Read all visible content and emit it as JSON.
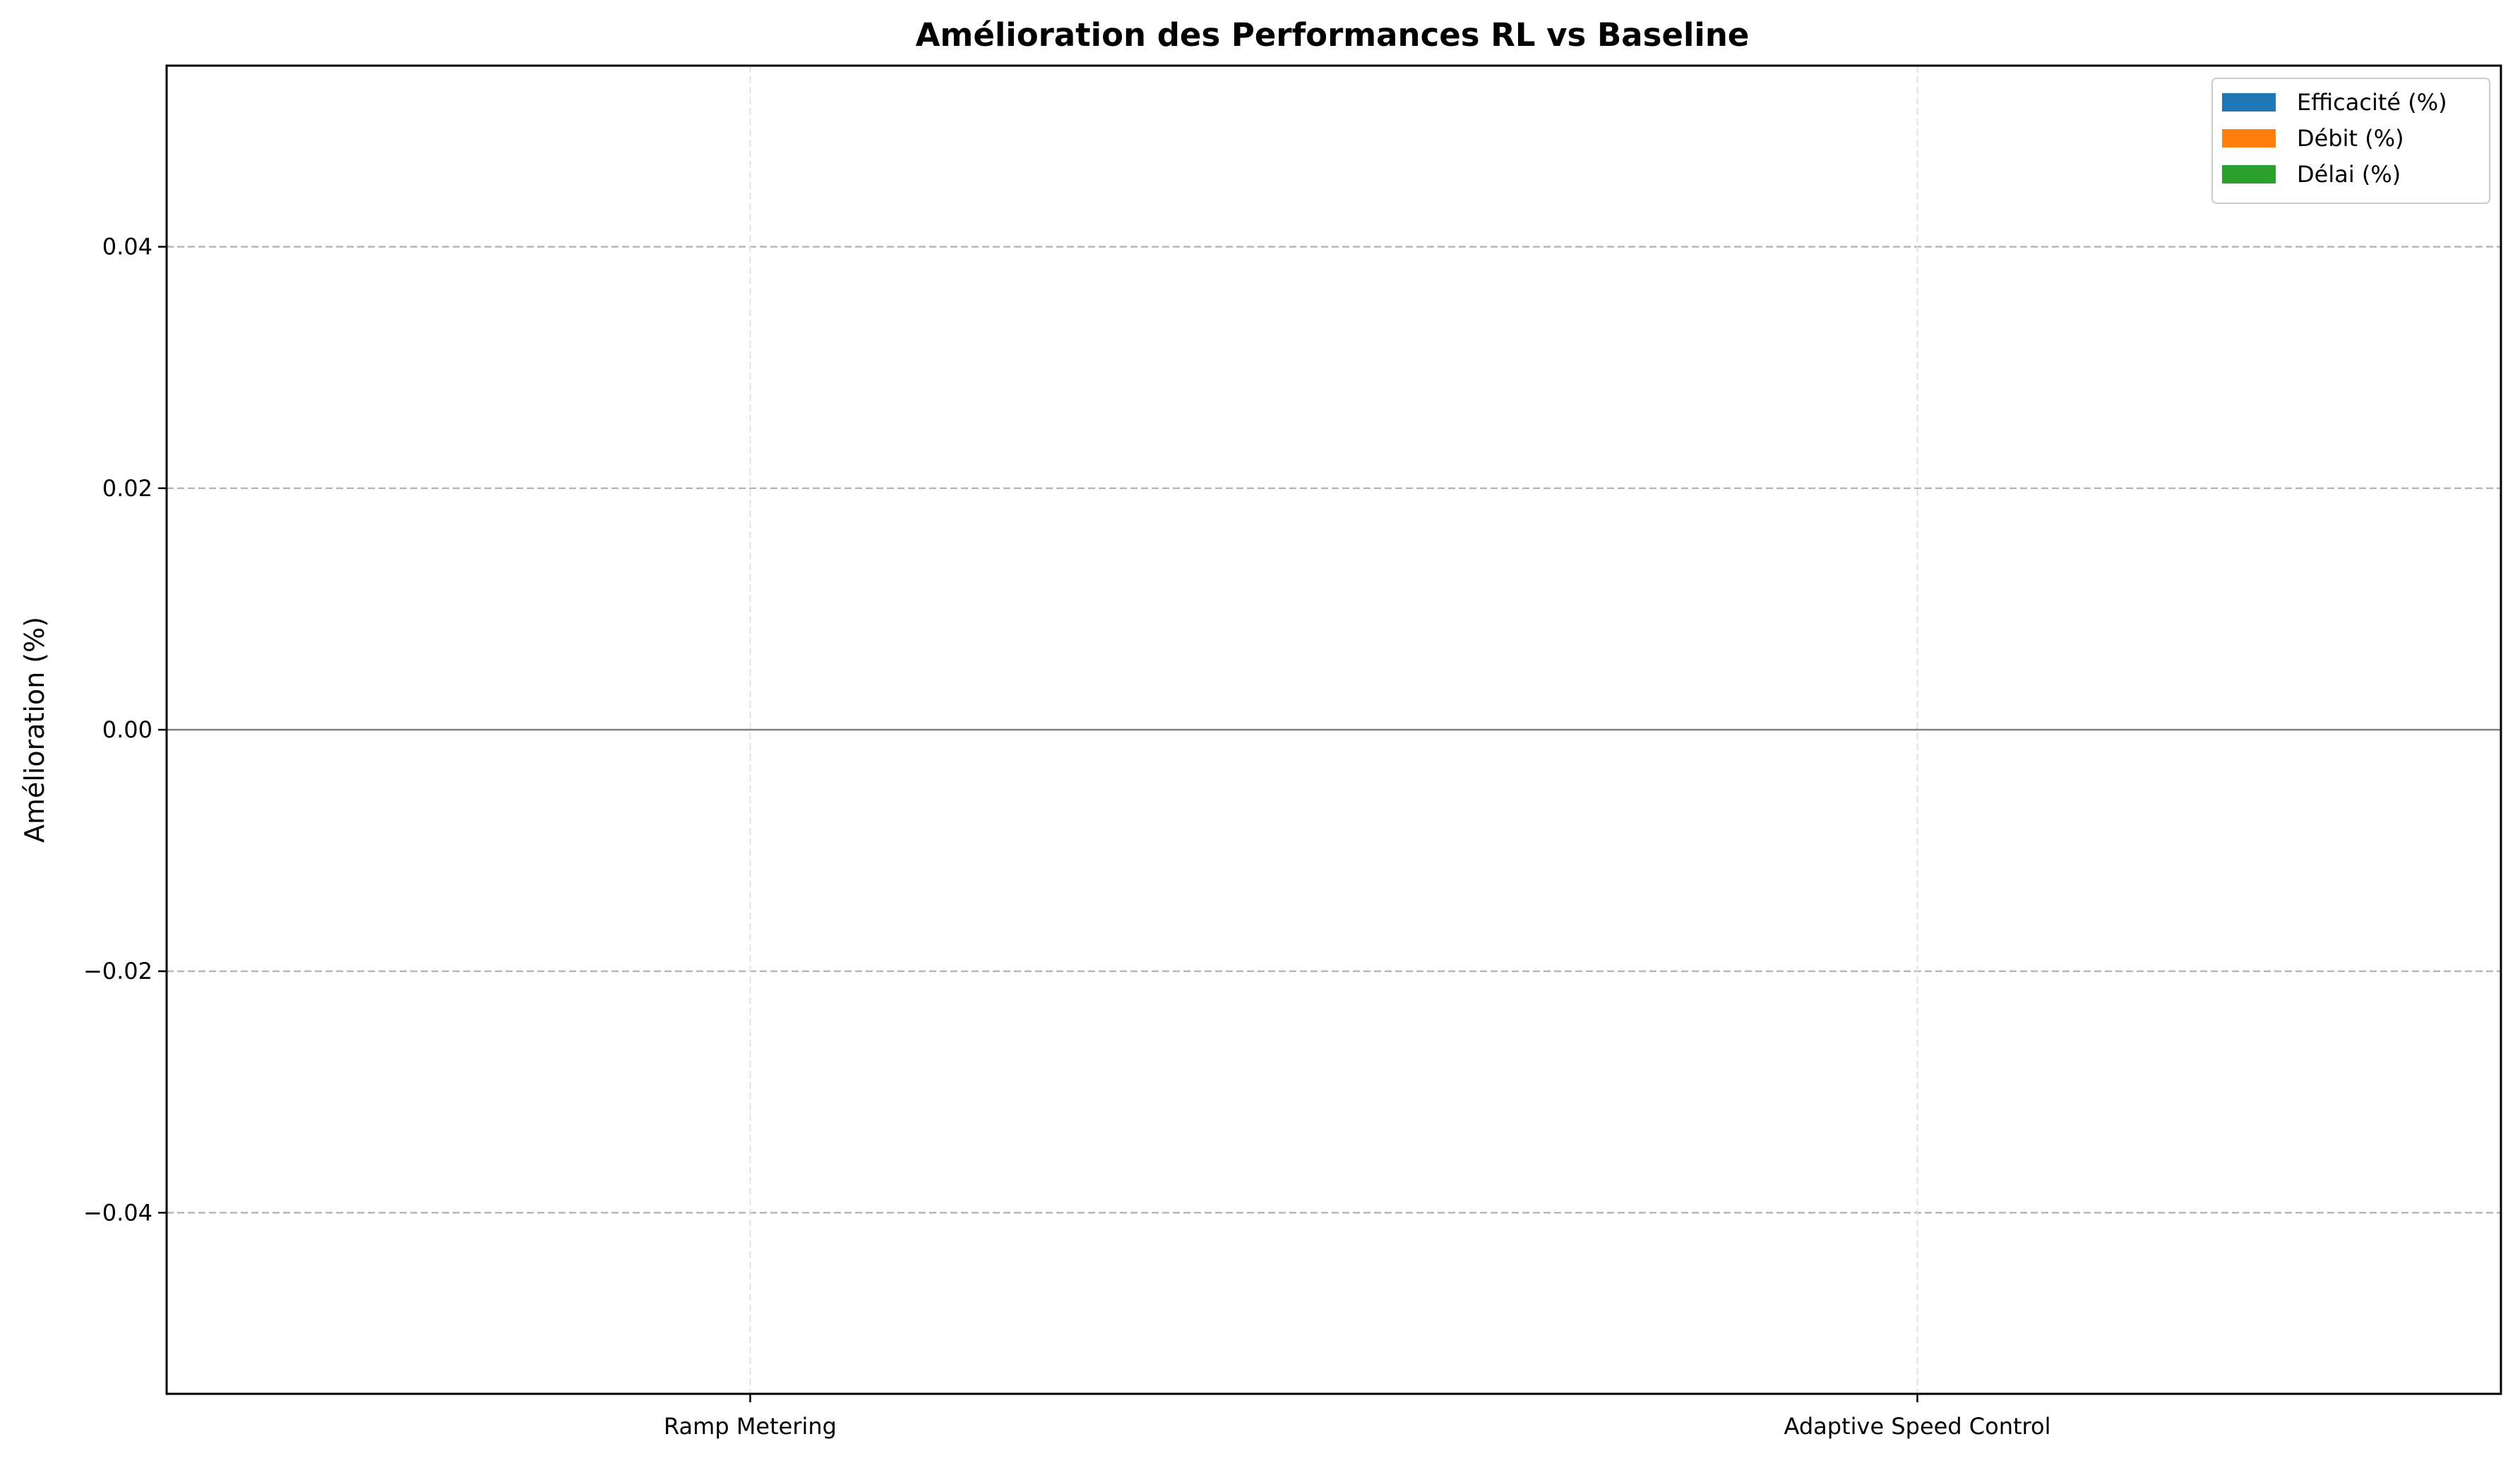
{
  "chart_data": {
    "type": "bar",
    "title": "Amélioration des Performances RL vs Baseline",
    "xlabel": "",
    "ylabel": "Amélioration (%)",
    "categories": [
      "Ramp Metering",
      "Adaptive Speed Control"
    ],
    "series": [
      {
        "name": "Efficacité (%)",
        "color": "#1f77b4",
        "values": [
          0,
          0
        ]
      },
      {
        "name": "Débit (%)",
        "color": "#ff7f0e",
        "values": [
          0,
          0
        ]
      },
      {
        "name": "Délai (%)",
        "color": "#2ca02c",
        "values": [
          0,
          0
        ]
      }
    ],
    "ylim": [
      -0.055,
      0.055
    ],
    "yticks": [
      -0.04,
      -0.02,
      0.0,
      0.02,
      0.04
    ],
    "ytick_labels": [
      "−0.04",
      "−0.02",
      "0.00",
      "0.02",
      "0.04"
    ],
    "grid": true,
    "zero_line": true,
    "legend_position": "top-right"
  }
}
